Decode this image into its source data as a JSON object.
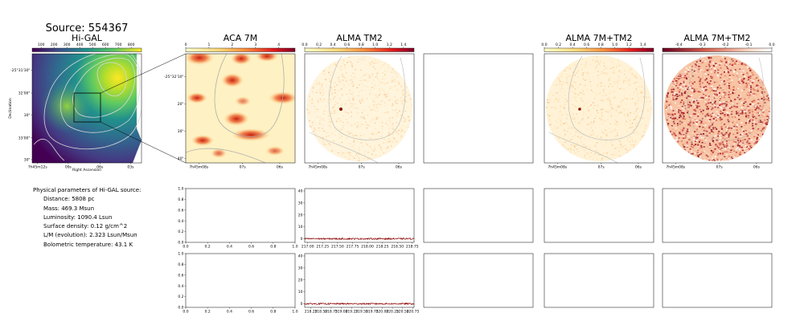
{
  "source_title": "Source: 554367",
  "parameters": {
    "heading": "Physical parameters of Hi-GAL source:",
    "distance": "Distance: 5808 pc",
    "mass": "Mass: 469.3 Msun",
    "luminosity": "Luminosity: 1090.4 Lsun",
    "surface_density": "Surface density: 0.12 g/cm^2",
    "lm": "L/M (evolution): 2.323 Lsun/Msun",
    "tbol": "Bolometric temperature: 43.1 K"
  },
  "chart_data": [
    {
      "type": "heatmap",
      "title": "Hi-GAL",
      "xlabel": "Right Ascension",
      "ylabel": "Declination",
      "colormap": "viridis",
      "colorbar_ticks": [
        "100",
        "200",
        "300",
        "400",
        "500",
        "600",
        "700",
        "800"
      ],
      "x_ticks": [
        "7h45m12s",
        "09s",
        "06s",
        "03s"
      ],
      "y_ticks": [
        "-25°31'30\"",
        "32'00\"",
        "30\"",
        "33'00\"",
        "30\""
      ],
      "peak": {
        "x": 0.8,
        "y": 0.2
      }
    },
    {
      "type": "heatmap",
      "title": "ACA 7M",
      "colormap": "YlOrRd",
      "colorbar_ticks": [
        "0",
        "1",
        "2",
        "3",
        "4"
      ],
      "x_ticks": [
        "7h45m08s",
        "07s",
        "06s"
      ],
      "y_ticks": [
        "-25°32'10\"",
        "20\"",
        "30\"",
        "40\""
      ]
    },
    {
      "type": "heatmap",
      "title": "ALMA TM2",
      "colormap": "YlOrRd",
      "colorbar_ticks": [
        "0.0",
        "0.2",
        "0.4",
        "0.6",
        "0.8",
        "1.0",
        "1.2",
        "1.4"
      ],
      "x_ticks": [
        "7h45m08s",
        "07s",
        "06s"
      ]
    },
    {
      "type": "heatmap",
      "title": "ALMA 7M+TM2",
      "colormap": "YlOrRd",
      "colorbar_ticks": [
        "0.0",
        "0.2",
        "0.4",
        "0.6",
        "0.8",
        "1.0",
        "1.2",
        "1.4"
      ],
      "x_ticks": [
        "7h45m08s",
        "07s",
        "06s"
      ]
    },
    {
      "type": "heatmap",
      "title": "ALMA 7M+TM2",
      "colormap": "RdBu_r",
      "colorbar_ticks": [
        "-0.4",
        "-0.3",
        "-0.2",
        "-0.1",
        "0.0"
      ],
      "x_ticks": [
        "7h45m08s",
        "07s",
        "06s"
      ]
    },
    {
      "type": "line",
      "title": "",
      "x_ticks": [
        "0.0",
        "0.2",
        "0.4",
        "0.6",
        "0.8",
        "1.0"
      ],
      "y_ticks": [
        "0.0",
        "0.2",
        "0.4",
        "0.6",
        "0.8",
        "1.0"
      ],
      "xlim": [
        0,
        1
      ],
      "ylim": [
        0,
        1
      ],
      "series": []
    },
    {
      "type": "line",
      "title": "",
      "x_ticks": [
        "217.00",
        "217.25",
        "217.50",
        "217.75",
        "218.00",
        "218.25",
        "218.50",
        "218.75"
      ],
      "y_ticks": [
        "0",
        "10",
        "20",
        "30",
        "40"
      ],
      "xlim": [
        216.95,
        218.78
      ],
      "ylim": [
        -3,
        42
      ],
      "series": [
        {
          "x": [
            216.95,
            218.78
          ],
          "y": [
            0,
            0
          ]
        }
      ]
    },
    {
      "type": "line",
      "title": "",
      "x_ticks": [
        "0.0",
        "0.2",
        "0.4",
        "0.6",
        "0.8",
        "1.0"
      ],
      "y_ticks": [
        "0.0",
        "0.2",
        "0.4",
        "0.6",
        "0.8",
        "1.0"
      ],
      "xlim": [
        0,
        1
      ],
      "ylim": [
        0,
        1
      ],
      "series": []
    },
    {
      "type": "line",
      "title": "",
      "x_ticks": [
        "218.25",
        "218.50",
        "218.75",
        "219.00",
        "219.25",
        "219.50",
        "219.75",
        "220.00",
        "220.25",
        "220.50",
        "220.75"
      ],
      "y_ticks": [
        "0",
        "10",
        "20",
        "30",
        "40"
      ],
      "xlim": [
        218.1,
        220.78
      ],
      "ylim": [
        -3,
        42
      ],
      "series": [
        {
          "x": [
            218.1,
            220.78
          ],
          "y": [
            0,
            0
          ]
        }
      ]
    }
  ]
}
